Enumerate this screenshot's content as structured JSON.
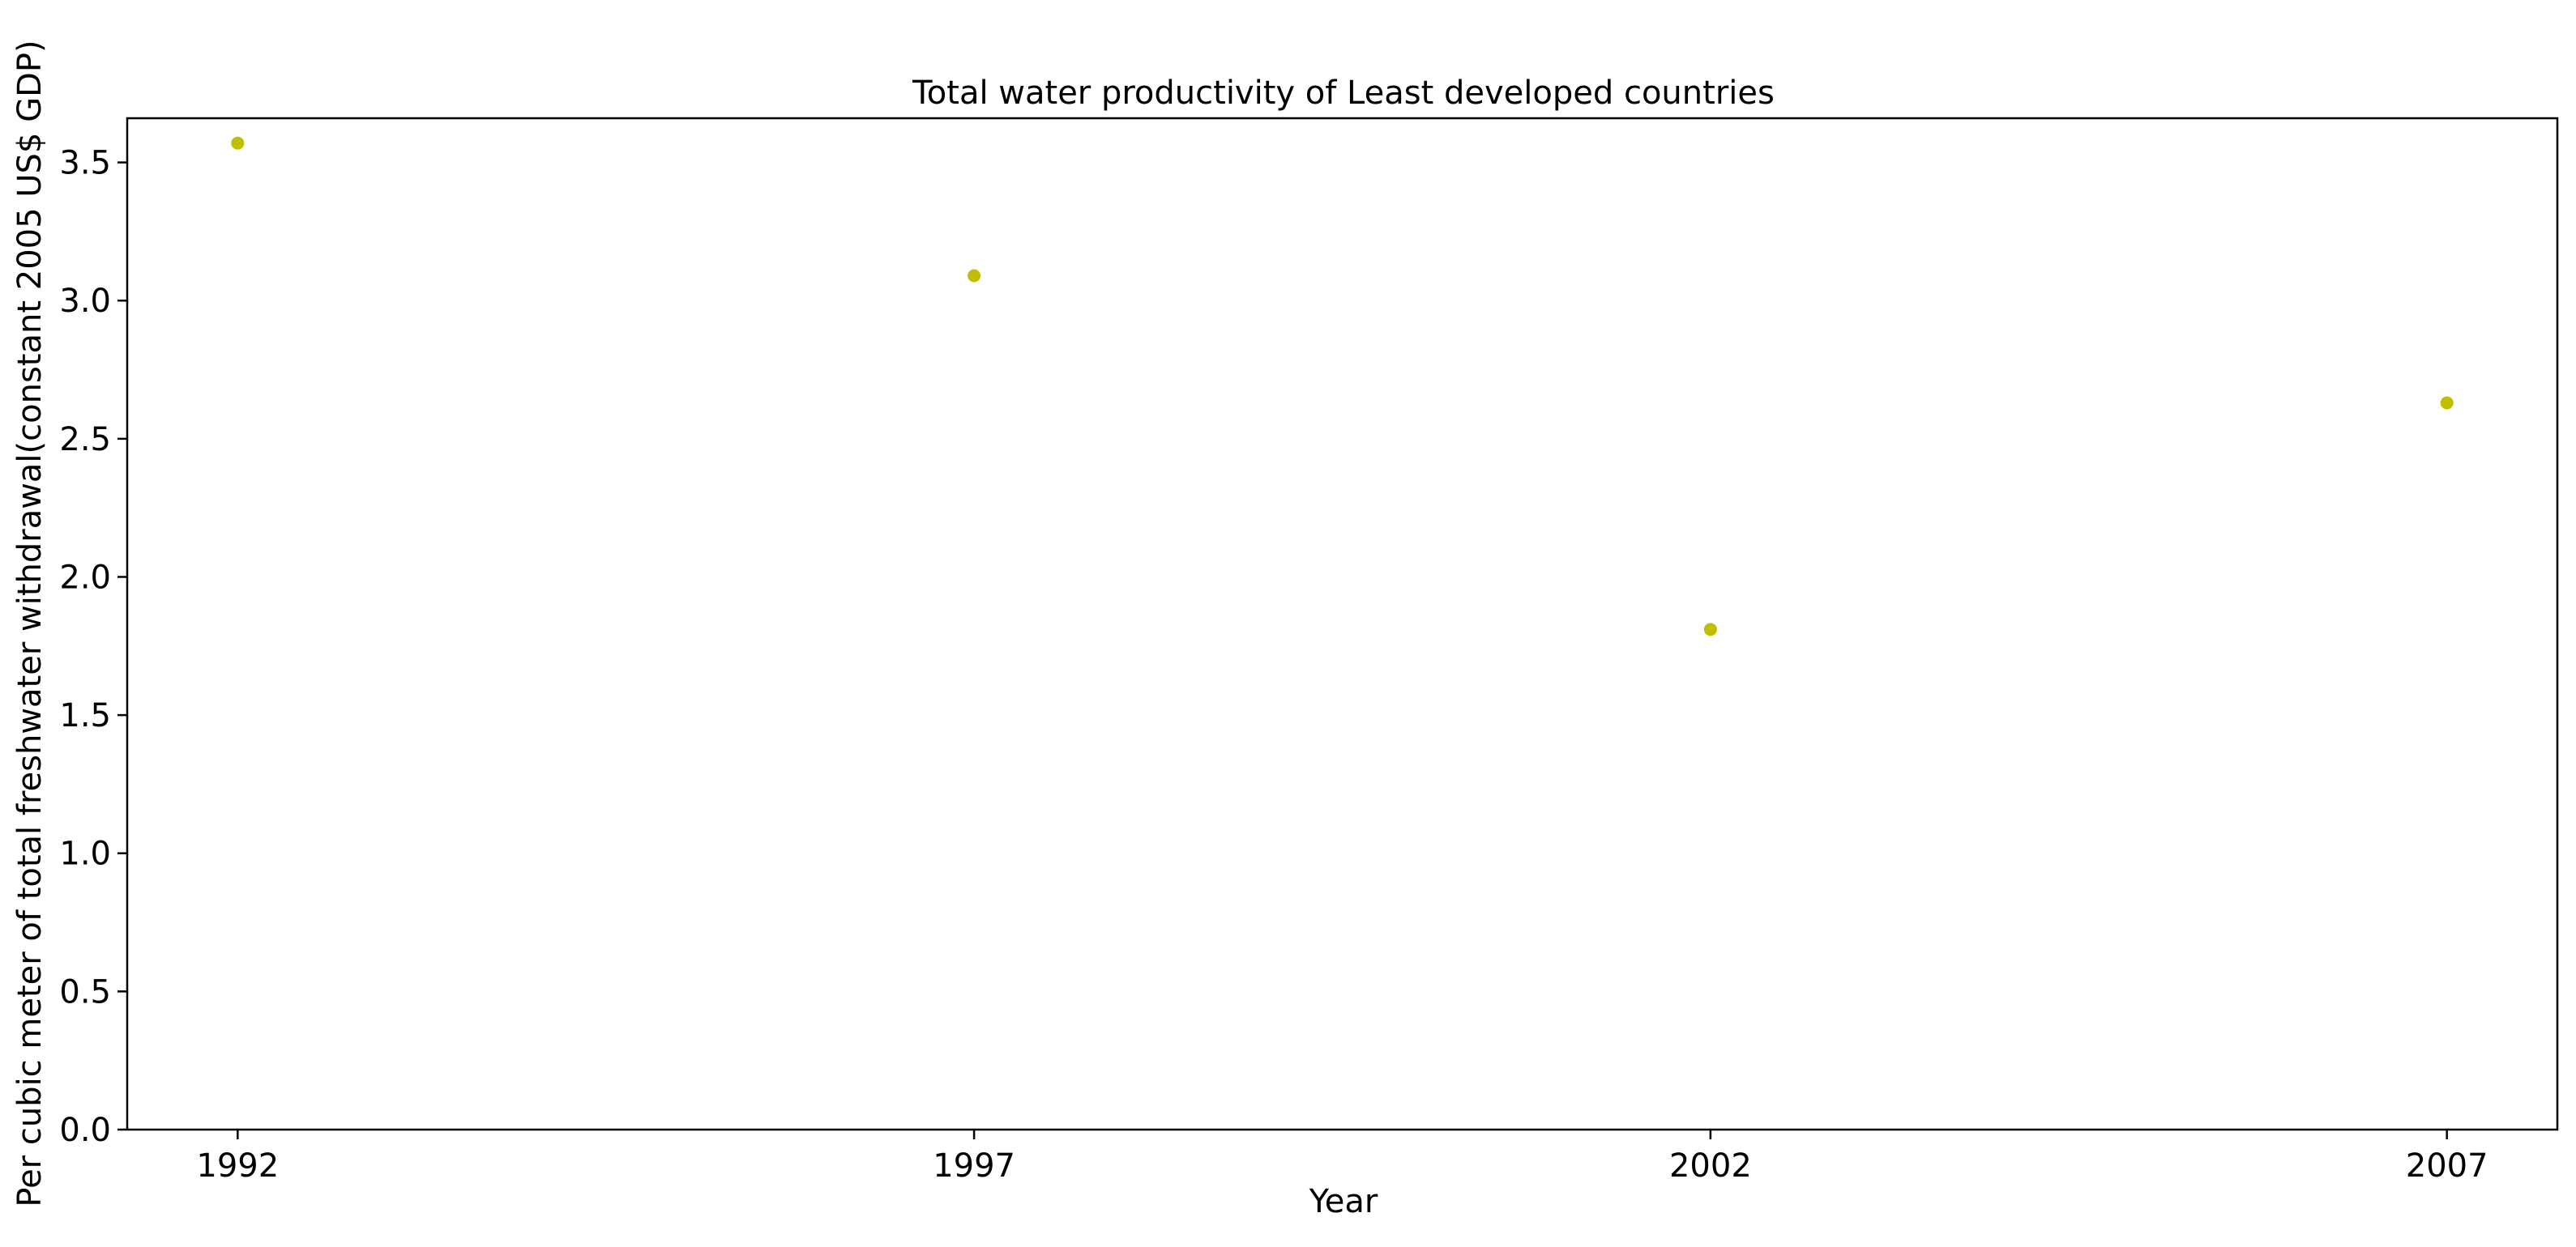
{
  "chart_data": {
    "type": "scatter",
    "title": "Total water productivity of Least developed countries",
    "xlabel": "Year",
    "ylabel": "Per cubic meter of total freshwater withdrawal(constant 2005 US$ GDP)",
    "x_ticks": [
      "1992",
      "1997",
      "2002",
      "2007"
    ],
    "y_ticks": [
      "0.0",
      "0.5",
      "1.0",
      "1.5",
      "2.0",
      "2.5",
      "3.0",
      "3.5"
    ],
    "xlim": [
      1991.25,
      2007.75
    ],
    "ylim": [
      0.0,
      3.66
    ],
    "grid": false,
    "marker_color": "#bfbf00",
    "series": [
      {
        "x": [
          1992,
          1997,
          2002,
          2007
        ],
        "y": [
          3.57,
          3.09,
          1.81,
          2.63
        ]
      }
    ]
  }
}
